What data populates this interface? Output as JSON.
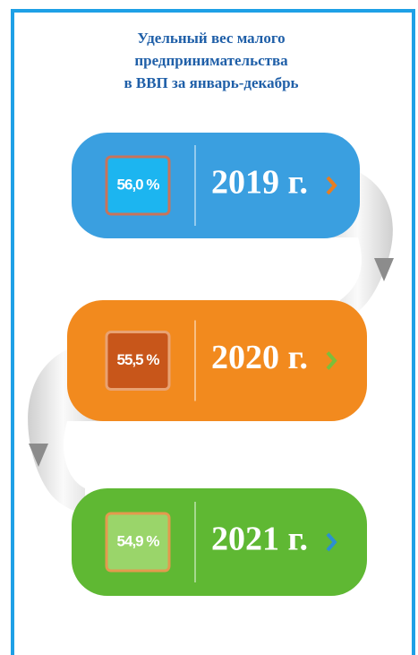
{
  "title": [
    "Удельный вес малого",
    "предпринимательства",
    "в ВВП за январь-декабрь"
  ],
  "items": [
    {
      "percent": "56,0 %",
      "year": "2019 г."
    },
    {
      "percent": "55,5 %",
      "year": "2020 г."
    },
    {
      "percent": "54,9 %",
      "year": "2021 г."
    }
  ]
}
